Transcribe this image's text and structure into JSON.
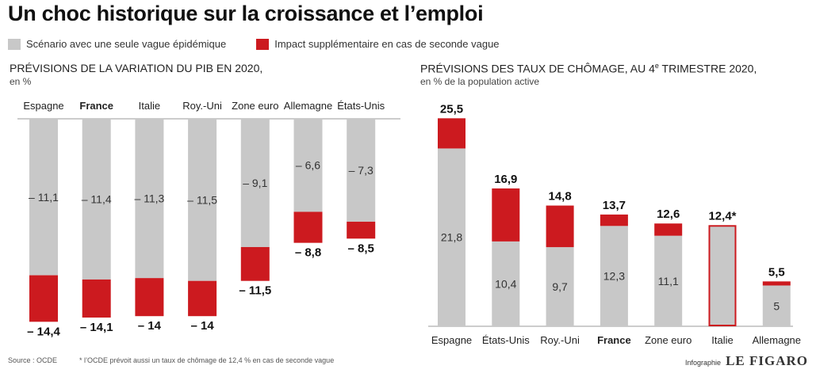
{
  "title": "Un choc historique sur la croissance et l’emploi",
  "legend": {
    "base": {
      "label": "Scénario avec une seule vague épidémique",
      "color": "#c8c8c8"
    },
    "extra": {
      "label": "Impact supplémentaire en cas de seconde vague",
      "color": "#cc1a1f"
    }
  },
  "chart_data": [
    {
      "type": "bar",
      "title": "PRÉVISIONS DE LA VARIATION DU PIB EN 2020,",
      "subtitle": "en %",
      "categories": [
        "Espagne",
        "France",
        "Italie",
        "Roy.-Uni",
        "Zone euro",
        "Allemagne",
        "États-Unis"
      ],
      "bold_category": "France",
      "series": [
        {
          "name": "Scénario avec une seule vague épidémique",
          "values": [
            -11.1,
            -11.4,
            -11.3,
            -11.5,
            -9.1,
            -6.6,
            -7.3
          ],
          "labels": [
            "– 11,1",
            "– 11,4",
            "– 11,3",
            "– 11,5",
            "– 9,1",
            "– 6,6",
            "– 7,3"
          ]
        },
        {
          "name": "Impact supplémentaire en cas de seconde vague",
          "totals": [
            -14.4,
            -14.1,
            -14,
            -14,
            -11.5,
            -8.8,
            -8.5
          ],
          "labels": [
            "– 14,4",
            "– 14,1",
            "– 14",
            "– 14",
            "– 11,5",
            "– 8,8",
            "– 8,5"
          ]
        }
      ]
    },
    {
      "type": "bar",
      "title": "PRÉVISIONS DES TAUX DE CHÔMAGE, AU 4e TRIMESTRE 2020,",
      "subtitle": "en % de la population active",
      "categories": [
        "Espagne",
        "États-Unis",
        "Roy.-Uni",
        "France",
        "Zone euro",
        "Italie",
        "Allemagne"
      ],
      "bold_category": "France",
      "series": [
        {
          "name": "Scénario avec une seule vague épidémique",
          "values": [
            21.8,
            10.4,
            9.7,
            12.3,
            11.1,
            12.4,
            5
          ],
          "labels": [
            "21,8",
            "10,4",
            "9,7",
            "12,3",
            "11,1",
            "",
            "5"
          ]
        },
        {
          "name": "Impact supplémentaire en cas de seconde vague",
          "totals": [
            25.5,
            16.9,
            14.8,
            13.7,
            12.6,
            12.4,
            5.5
          ],
          "labels": [
            "25,5",
            "16,9",
            "14,8",
            "13,7",
            "12,6",
            "12,4*",
            "5,5"
          ]
        }
      ],
      "outlined_category": "Italie"
    }
  ],
  "source": "Source : OCDE",
  "footnote": "* l’OCDE prévoit aussi un taux de chômage de 12,4 % en cas de seconde vague",
  "credit_prefix": "Infographie",
  "credit_brand": "LE FIGARO"
}
